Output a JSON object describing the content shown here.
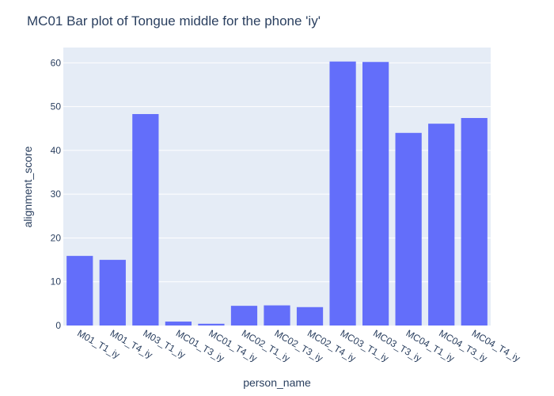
{
  "chart_data": {
    "type": "bar",
    "title": "MC01 Bar plot of Tongue middle for the phone 'iy'",
    "xlabel": "person_name",
    "ylabel": "alignment_score",
    "categories": [
      "M01_T1_iy",
      "M01_T4_iy",
      "M03_T1_iy",
      "MC01_T3_iy",
      "MC01_T4_iy",
      "MC02_T1_iy",
      "MC02_T3_iy",
      "MC02_T4_iy",
      "MC03_T1_iy",
      "MC03_T3_iy",
      "MC04_T1_iy",
      "MC04_T3_iy",
      "MC04_T4_iy"
    ],
    "values": [
      15.9,
      15.0,
      48.3,
      0.9,
      0.4,
      4.5,
      4.6,
      4.2,
      60.3,
      60.2,
      44.0,
      46.1,
      47.4
    ],
    "yticks": [
      0,
      10,
      20,
      30,
      40,
      50,
      60
    ],
    "ylim": [
      0,
      63.5
    ],
    "grid": true,
    "colors": {
      "bar": "#636efa",
      "plot_bg": "#e5ecf6",
      "grid": "#ffffff",
      "text": "#2a3f5f"
    }
  }
}
